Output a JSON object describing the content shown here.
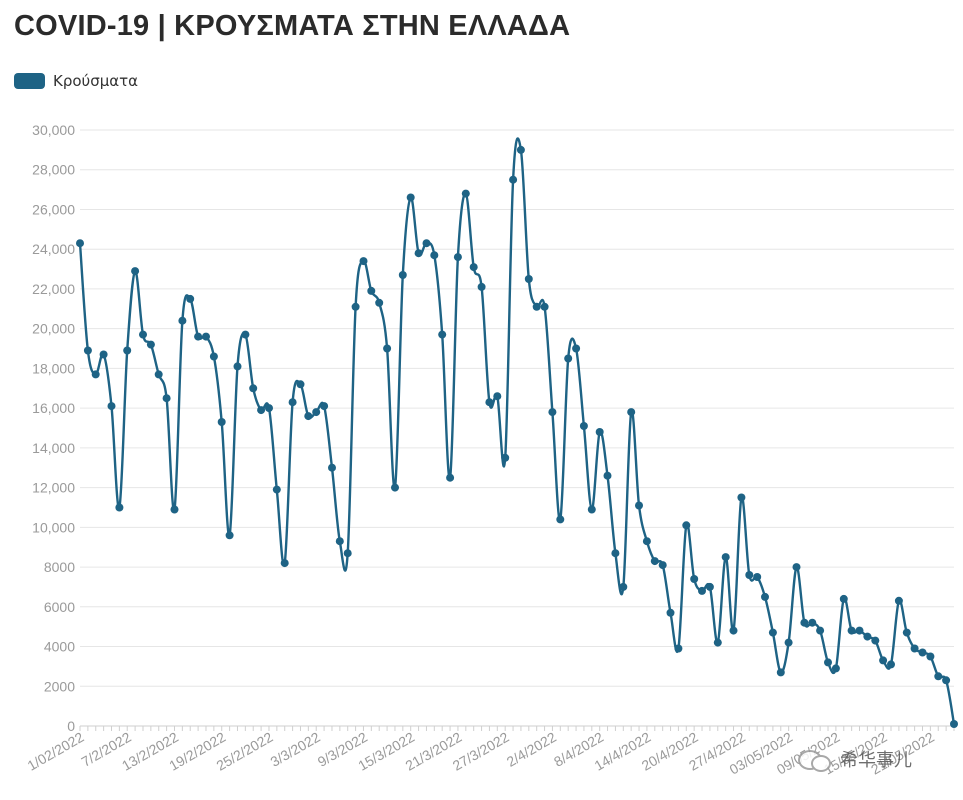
{
  "title": "COVID-19 | ΚΡΟΥΣΜΑΤΑ ΣΤΗΝ ΕΛΛΑΔΑ",
  "legend": {
    "label": "Κρούσματα",
    "color": "#1e6385"
  },
  "watermark": {
    "text": "希华事儿",
    "icon": "wechat-icon"
  },
  "chart_data": {
    "type": "line",
    "title": "COVID-19 | ΚΡΟΥΣΜΑΤΑ ΣΤΗΝ ΕΛΛΑΔΑ",
    "xlabel": "",
    "ylabel": "",
    "ylim": [
      0,
      30000
    ],
    "grid": true,
    "legend_position": "top-left",
    "y_ticks": [
      0,
      2000,
      4000,
      6000,
      8000,
      10000,
      12000,
      14000,
      16000,
      18000,
      20000,
      22000,
      24000,
      26000,
      28000,
      30000
    ],
    "y_tick_labels": [
      "0",
      "2000",
      "4000",
      "6000",
      "8000",
      "10,000",
      "12,000",
      "14,000",
      "16,000",
      "18,000",
      "20,000",
      "22,000",
      "24,000",
      "26,000",
      "28,000",
      "30,000"
    ],
    "x_tick_labels": [
      {
        "index": 0,
        "label": "1/02/2022"
      },
      {
        "index": 6,
        "label": "7/2/2022"
      },
      {
        "index": 12,
        "label": "13/2/2022"
      },
      {
        "index": 18,
        "label": "19/2/2022"
      },
      {
        "index": 24,
        "label": "25/2/2022"
      },
      {
        "index": 30,
        "label": "3/3/2022"
      },
      {
        "index": 36,
        "label": "9/3/2022"
      },
      {
        "index": 42,
        "label": "15/3/2022"
      },
      {
        "index": 48,
        "label": "21/3/2022"
      },
      {
        "index": 54,
        "label": "27/3/2022"
      },
      {
        "index": 60,
        "label": "2/4/2022"
      },
      {
        "index": 66,
        "label": "8/4/2022"
      },
      {
        "index": 72,
        "label": "14/4/2022"
      },
      {
        "index": 78,
        "label": "20/4/2022"
      },
      {
        "index": 84,
        "label": "27/4/2022"
      },
      {
        "index": 90,
        "label": "03/05/2022"
      },
      {
        "index": 96,
        "label": "09/05/2022"
      },
      {
        "index": 102,
        "label": "15/05/2022"
      },
      {
        "index": 108,
        "label": "21/05/2022"
      }
    ],
    "series": [
      {
        "name": "Κρούσματα",
        "color": "#1e6385",
        "values": [
          24300,
          18900,
          17700,
          18700,
          16100,
          11000,
          18900,
          22900,
          19700,
          19200,
          17700,
          16500,
          10900,
          20400,
          21500,
          19600,
          19600,
          18600,
          15300,
          9600,
          18100,
          19700,
          17000,
          15900,
          16000,
          11900,
          8200,
          16300,
          17200,
          15600,
          15800,
          16100,
          13000,
          9300,
          8700,
          21100,
          23400,
          21900,
          21300,
          19000,
          12000,
          22700,
          26600,
          23800,
          24300,
          23700,
          19700,
          12500,
          23600,
          26800,
          23100,
          22100,
          16300,
          16600,
          13500,
          27500,
          29000,
          22500,
          21100,
          21100,
          15800,
          10400,
          18500,
          19000,
          15100,
          10900,
          14800,
          12600,
          8700,
          7000,
          15800,
          11100,
          9300,
          8300,
          8100,
          5700,
          3900,
          10100,
          7400,
          6800,
          7000,
          4200,
          8500,
          4800,
          11500,
          7600,
          7500,
          6500,
          4700,
          2700,
          4200,
          8000,
          5200,
          5200,
          4800,
          3200,
          2900,
          6400,
          4800,
          4800,
          4500,
          4300,
          3300,
          3100,
          6300,
          4700,
          3900,
          3700,
          3500,
          2500,
          2300,
          100
        ]
      }
    ]
  }
}
